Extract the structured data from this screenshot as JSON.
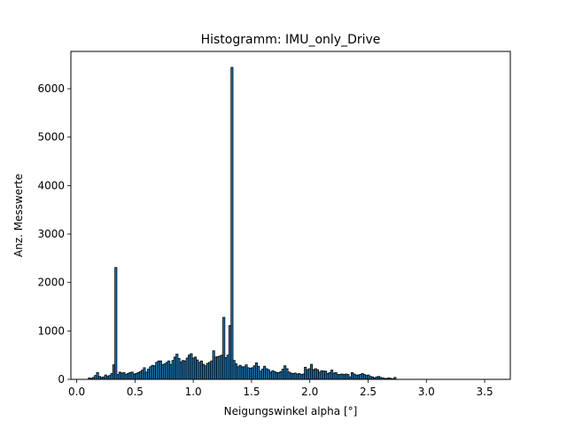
{
  "chart_data": {
    "type": "bar",
    "title": "Histogramm: IMU_only_Drive",
    "xlabel": "Neigungswinkel alpha [°]",
    "ylabel": "Anz. Messwerte",
    "xlim": [
      -0.05,
      3.72
    ],
    "ylim": [
      0,
      6770
    ],
    "xticks": [
      0.0,
      0.5,
      1.0,
      1.5,
      2.0,
      2.5,
      3.0,
      3.5
    ],
    "xtick_labels": [
      "0.0",
      "0.5",
      "1.0",
      "1.5",
      "2.0",
      "2.5",
      "3.0",
      "3.5"
    ],
    "yticks": [
      0,
      1000,
      2000,
      3000,
      4000,
      5000,
      6000
    ],
    "ytick_labels": [
      "0",
      "1000",
      "2000",
      "3000",
      "4000",
      "5000",
      "6000"
    ],
    "grid": false,
    "legend": false,
    "bar_color": "#1f77b4",
    "edge_color": "#000000",
    "bin_start": 0.1,
    "bin_width": 0.01748,
    "values": [
      30,
      20,
      40,
      80,
      140,
      60,
      40,
      50,
      90,
      60,
      80,
      120,
      300,
      2310,
      100,
      150,
      130,
      140,
      100,
      120,
      140,
      150,
      110,
      120,
      140,
      160,
      190,
      240,
      150,
      210,
      260,
      290,
      280,
      350,
      380,
      380,
      300,
      320,
      350,
      380,
      310,
      390,
      460,
      520,
      430,
      360,
      390,
      380,
      440,
      500,
      530,
      440,
      460,
      400,
      350,
      380,
      310,
      280,
      330,
      350,
      380,
      590,
      460,
      470,
      480,
      500,
      1280,
      450,
      500,
      1110,
      6440,
      390,
      320,
      260,
      290,
      260,
      260,
      300,
      240,
      230,
      240,
      280,
      340,
      270,
      170,
      210,
      270,
      220,
      200,
      150,
      180,
      160,
      140,
      140,
      160,
      210,
      280,
      220,
      150,
      130,
      120,
      130,
      110,
      120,
      100,
      110,
      250,
      200,
      220,
      310,
      200,
      220,
      200,
      150,
      180,
      170,
      170,
      120,
      140,
      190,
      130,
      140,
      100,
      100,
      110,
      100,
      110,
      100,
      50,
      140,
      110,
      90,
      90,
      100,
      120,
      100,
      80,
      90,
      60,
      50,
      30,
      50,
      60,
      40,
      30,
      20,
      20,
      30,
      20,
      10,
      40
    ]
  }
}
